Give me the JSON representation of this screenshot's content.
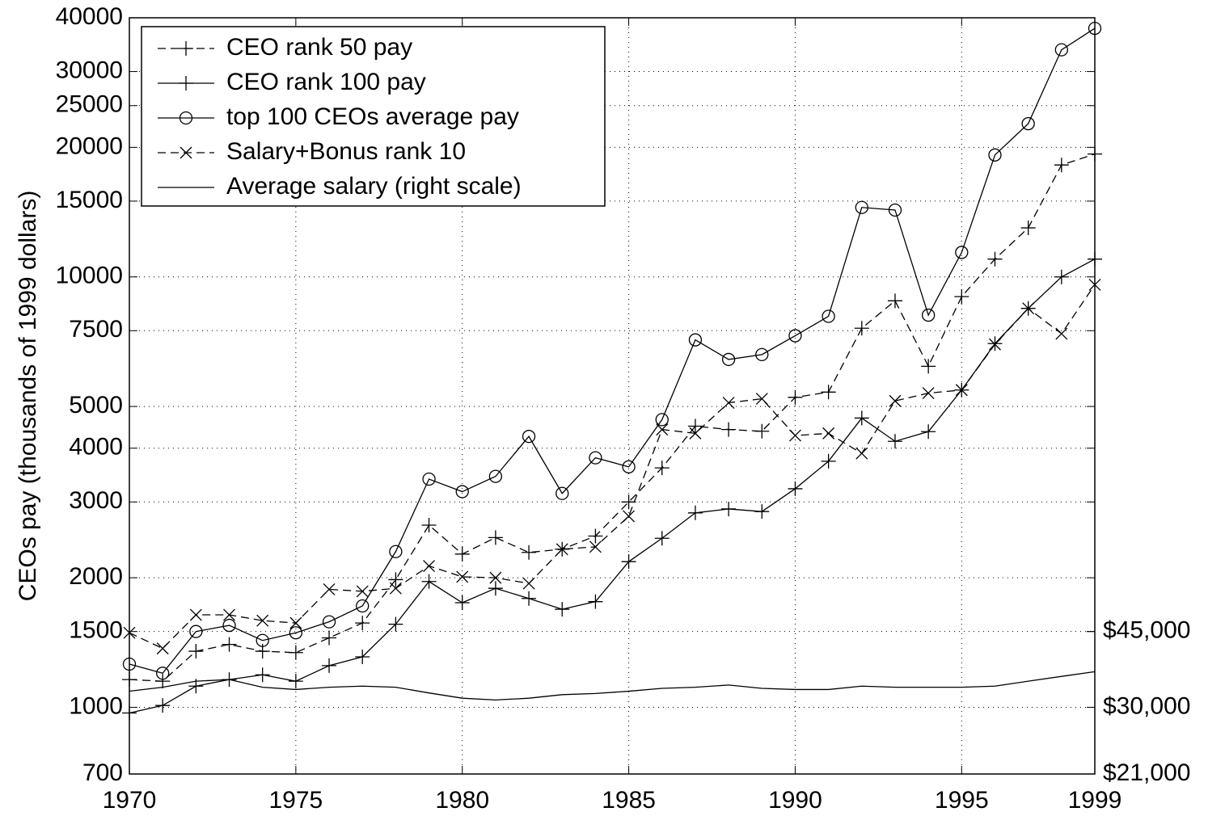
{
  "chart_data": {
    "type": "line",
    "y_label": "CEOs pay (thousands of 1999 dollars)",
    "x": [
      1970,
      1971,
      1972,
      1973,
      1974,
      1975,
      1976,
      1977,
      1978,
      1979,
      1980,
      1981,
      1982,
      1983,
      1984,
      1985,
      1986,
      1987,
      1988,
      1989,
      1990,
      1991,
      1992,
      1993,
      1994,
      1995,
      1996,
      1997,
      1998,
      1999
    ],
    "series": [
      {
        "name": "CEO rank 50 pay",
        "color": "#000000",
        "dash": true,
        "marker": "plus",
        "values": [
          1160,
          1150,
          1350,
          1400,
          1350,
          1340,
          1450,
          1570,
          1980,
          2650,
          2270,
          2480,
          2290,
          2330,
          2500,
          3000,
          3600,
          4500,
          4420,
          4380,
          5250,
          5400,
          7600,
          8800,
          6200,
          9000,
          11000,
          13000,
          18200,
          19300
        ]
      },
      {
        "name": "CEO rank 100 pay",
        "color": "#000000",
        "dash": false,
        "marker": "plus",
        "values": [
          970,
          1010,
          1120,
          1160,
          1190,
          1150,
          1250,
          1310,
          1560,
          1960,
          1750,
          1890,
          1790,
          1690,
          1760,
          2180,
          2470,
          2830,
          2890,
          2850,
          3220,
          3730,
          4700,
          4150,
          4370,
          5460,
          7000,
          8450,
          10000,
          11000
        ]
      },
      {
        "name": "top 100 CEOs average pay",
        "color": "#000000",
        "dash": false,
        "marker": "circle",
        "values": [
          1260,
          1200,
          1500,
          1550,
          1430,
          1490,
          1580,
          1720,
          2300,
          3390,
          3170,
          3440,
          4260,
          3140,
          3800,
          3620,
          4660,
          7140,
          6430,
          6600,
          7300,
          8100,
          14500,
          14300,
          8150,
          11400,
          19200,
          22700,
          33700,
          37800
        ]
      },
      {
        "name": "Salary+Bonus rank 10",
        "color": "#000000",
        "dash": true,
        "marker": "cross",
        "values": [
          1490,
          1370,
          1640,
          1640,
          1590,
          1570,
          1880,
          1860,
          1890,
          2130,
          2010,
          2000,
          1940,
          2330,
          2360,
          2780,
          4420,
          4330,
          5100,
          5210,
          4280,
          4330,
          3890,
          5150,
          5370,
          5460,
          6970,
          8450,
          7380,
          9590
        ]
      },
      {
        "name": "Average salary (right scale)",
        "color": "#000000",
        "dash": false,
        "marker": "none",
        "axis": "y2",
        "values": [
          32700,
          33400,
          34500,
          34800,
          33400,
          33000,
          33400,
          33600,
          33400,
          32400,
          31500,
          31200,
          31500,
          32100,
          32300,
          32700,
          33200,
          33400,
          33800,
          33200,
          33000,
          33000,
          33600,
          33400,
          33400,
          33400,
          33600,
          34500,
          35400,
          36300
        ]
      }
    ],
    "xlim": [
      1970,
      1999
    ],
    "xticks": [
      1970,
      1975,
      1980,
      1985,
      1990,
      1995,
      1999
    ],
    "ylim": [
      700,
      40000
    ],
    "yticks": [
      700,
      1000,
      1500,
      2000,
      3000,
      4000,
      5000,
      7500,
      10000,
      15000,
      20000,
      25000,
      30000,
      40000
    ],
    "y2lim": [
      21000,
      1200000
    ],
    "y2ticks": [
      {
        "value": 21000,
        "label": "$21,000"
      },
      {
        "value": 30000,
        "label": "$30,000"
      },
      {
        "value": 45000,
        "label": "$45,000"
      }
    ],
    "log_y": true,
    "grid": true,
    "legend": "upper-left"
  }
}
